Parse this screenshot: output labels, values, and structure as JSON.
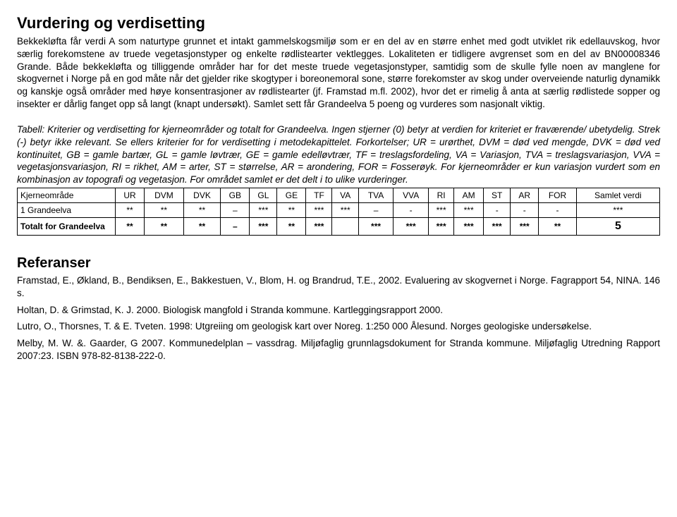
{
  "section1": {
    "heading": "Vurdering og verdisetting",
    "paragraph": "Bekkekløfta får verdi A som naturtype grunnet et intakt gammelskogsmiljø som er en del av en større enhet med godt utviklet rik edellauvskog, hvor særlig forekomstene av truede vegetasjonstyper og enkelte rødlistearter vektlegges. Lokaliteten er tidligere avgrenset som en del av BN00008346 Grande. Både bekkekløfta og tilliggende områder har for det meste truede vegetasjonstyper, samtidig som de skulle fylle noen av manglene for skogvernet i Norge på en god måte når det gjelder rike skogtyper i boreonemoral sone, større forekomster av skog under overveiende naturlig dynamikk og kanskje også områder med høye konsentrasjoner av rødlistearter (jf. Framstad m.fl. 2002), hvor det er rimelig å anta at særlig rødlistede sopper og insekter er dårlig fanget opp så langt (knapt undersøkt). Samlet sett får Grandeelva 5 poeng og vurderes som nasjonalt viktig."
  },
  "tableIntro": "Tabell: Kriterier og verdisetting for kjerneområder og totalt for Grandeelva. Ingen stjerner (0) betyr at verdien for kriteriet er fraværende/ ubetydelig. Strek (-) betyr ikke relevant. Se ellers kriterier for for verdisetting i metodekapittelet. Forkortelser; UR = urørthet, DVM = død ved mengde, DVK = død ved kontinuitet, GB = gamle bartær, GL = gamle løvtrær, GE = gamle edelløvtrær, TF = treslagsfordeling, VA = Variasjon, TVA = treslagsvariasjon, VVA = vegetasjonsvariasjon, RI = rikhet, AM = arter,  ST = størrelse, AR = arondering, FOR = Fosserøyk. For kjerneområder er kun variasjon vurdert som en kombinasjon av topografi og vegetasjon. For området samlet er det delt i to ulike vurderinger.",
  "table": {
    "headers": [
      "Kjerneområde",
      "UR",
      "DVM",
      "DVK",
      "GB",
      "GL",
      "GE",
      "TF",
      "VA",
      "TVA",
      "VVA",
      "RI",
      "AM",
      "ST",
      "AR",
      "FOR",
      "Samlet verdi"
    ],
    "rows": [
      [
        "1 Grandeelva",
        "**",
        "**",
        "**",
        "–",
        "***",
        "**",
        "***",
        "***",
        "–",
        "-",
        "***",
        "***",
        "-",
        "-",
        "-",
        "***"
      ],
      [
        "Totalt for Grandeelva",
        "**",
        "**",
        "**",
        "–",
        "***",
        "**",
        "***",
        "",
        "***",
        "***",
        "***",
        "***",
        "***",
        "***",
        "**",
        "5"
      ]
    ]
  },
  "refs": {
    "heading": "Referanser",
    "items": [
      "Framstad, E., Økland, B., Bendiksen, E., Bakkestuen, V., Blom, H. og Brandrud, T.E., 2002. Evaluering av skogvernet i Norge. Fagrapport 54, NINA. 146 s.",
      "Holtan, D. & Grimstad, K. J. 2000. Biologisk mangfold i Stranda kommune. Kartleggingsrapport 2000.",
      "Lutro, O., Thorsnes, T. & E. Tveten.  1998: Utgreiing om geologisk kart over Noreg. 1:250 000 Ålesund.  Norges geologiske undersøkelse.",
      "Melby, M. W. &. Gaarder, G 2007. Kommunedelplan – vassdrag. Miljøfaglig grunnlagsdokument for Stranda kommune. Miljøfaglig Utredning Rapport 2007:23. ISBN 978-82-8138-222-0."
    ]
  }
}
